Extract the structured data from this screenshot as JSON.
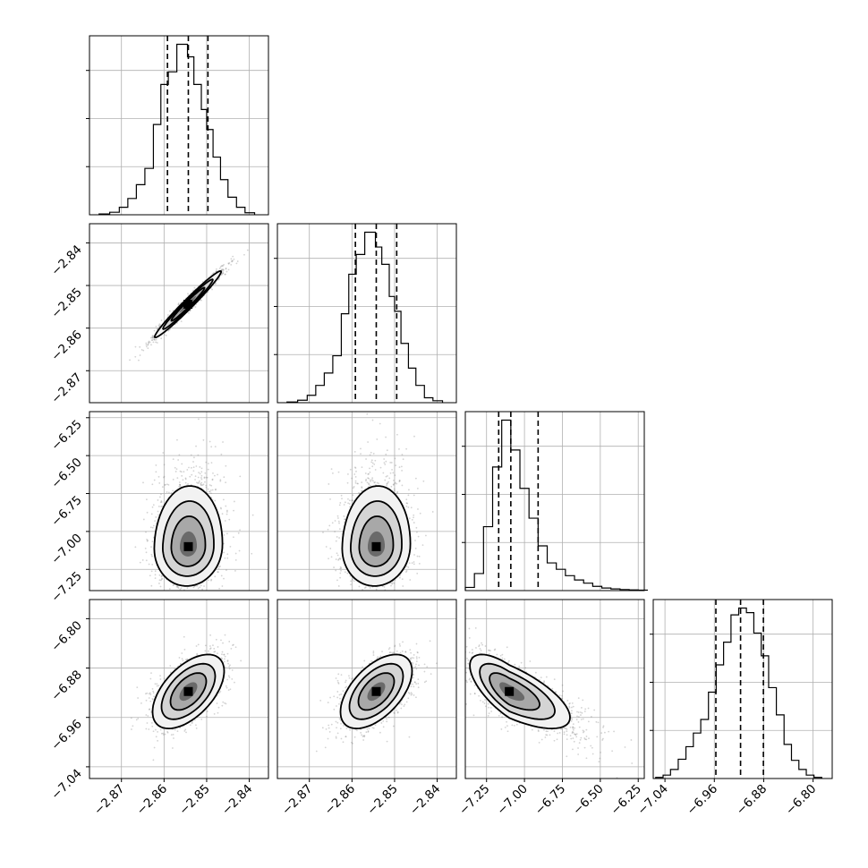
{
  "chart_data": {
    "type": "corner",
    "title": "",
    "grid": true,
    "n_params": 4,
    "params": [
      {
        "index": 0,
        "label": "",
        "range": [
          -2.8775,
          -2.8355
        ],
        "ticks": [
          -2.87,
          -2.86,
          -2.85,
          -2.84
        ],
        "tick_labels": [
          "−2.87",
          "−2.86",
          "−2.85",
          "−2.84"
        ],
        "quantiles": [
          -2.8592,
          -2.8543,
          -2.8497
        ],
        "hist_x": [
          -2.874,
          -2.8715,
          -2.8695,
          -2.8675,
          -2.8655,
          -2.8635,
          -2.8615,
          -2.86,
          -2.858,
          -2.856,
          -2.855,
          -2.854,
          -2.852,
          -2.8505,
          -2.8495,
          -2.8475,
          -2.846,
          -2.844,
          -2.842,
          -2.84
        ],
        "hist_y": [
          0.3,
          1.0,
          3.0,
          6.5,
          12.0,
          18.5,
          36.0,
          52.0,
          57.0,
          68.0,
          68.0,
          63.0,
          52.0,
          42.0,
          34.0,
          23.0,
          14.0,
          7.0,
          3.0,
          0.8
        ]
      },
      {
        "index": 1,
        "label": "",
        "range": [
          -2.8775,
          -2.8355
        ],
        "ticks": [
          -2.87,
          -2.86,
          -2.85,
          -2.84
        ],
        "tick_labels": [
          "−2.87",
          "−2.86",
          "−2.85",
          "−2.84"
        ],
        "quantiles": [
          -2.8592,
          -2.8543,
          -2.8495
        ],
        "hist_x": [
          -2.874,
          -2.8715,
          -2.8695,
          -2.8675,
          -2.8655,
          -2.8635,
          -2.8615,
          -2.86,
          -2.858,
          -2.856,
          -2.855,
          -2.854,
          -2.852,
          -2.8505,
          -2.8495,
          -2.8475,
          -2.846,
          -2.844,
          -2.842,
          -2.84
        ],
        "hist_y": [
          0.3,
          1.0,
          3.0,
          7.0,
          12.0,
          19.0,
          36.0,
          52.0,
          60.0,
          69.0,
          69.0,
          63.0,
          56.0,
          43.0,
          37.0,
          24.0,
          14.0,
          7.0,
          2.0,
          0.8
        ]
      },
      {
        "index": 2,
        "label": "",
        "range": [
          -7.39,
          -6.21
        ],
        "ticks": [
          -7.25,
          -7.0,
          -6.75,
          -6.5,
          -6.25
        ],
        "tick_labels": [
          "−7.25",
          "−7.00",
          "−6.75",
          "−6.50",
          "−6.25"
        ],
        "quantiles": [
          -7.17,
          -7.09,
          -6.91
        ],
        "hist_x": [
          -7.36,
          -7.3,
          -7.24,
          -7.18,
          -7.12,
          -7.06,
          -7.0,
          -6.94,
          -6.88,
          -6.82,
          -6.76,
          -6.7,
          -6.64,
          -6.58,
          -6.52,
          -6.46,
          -6.4,
          -6.34,
          -6.28,
          -6.22
        ],
        "hist_y": [
          1.5,
          8.0,
          30.0,
          58.0,
          80.0,
          66.0,
          48.0,
          34.0,
          21.0,
          13.0,
          10.0,
          7.0,
          5.0,
          3.5,
          2.0,
          1.2,
          0.8,
          0.5,
          0.3,
          0.2
        ]
      },
      {
        "index": 3,
        "label": "",
        "range": [
          -7.059,
          -6.769
        ],
        "ticks": [
          -7.04,
          -6.96,
          -6.88,
          -6.8
        ],
        "tick_labels": [
          "−7.04",
          "−6.96",
          "−6.88",
          "−6.80"
        ],
        "quantiles": [
          -6.9575,
          -6.9175,
          -6.8805
        ],
        "hist_x": [
          -7.049,
          -7.037,
          -7.025,
          -7.012,
          -7.0,
          -6.988,
          -6.976,
          -6.963,
          -6.951,
          -6.939,
          -6.927,
          -6.914,
          -6.902,
          -6.89,
          -6.878,
          -6.866,
          -6.853,
          -6.841,
          -6.829,
          -6.817,
          -6.805,
          -6.792
        ],
        "hist_y": [
          0.5,
          1.5,
          4.0,
          8.5,
          14.0,
          20.0,
          26.0,
          38.0,
          50.0,
          60.0,
          72.0,
          75.0,
          73.0,
          64.0,
          54.0,
          40.0,
          28.0,
          15.0,
          8.0,
          4.0,
          1.5,
          0.5
        ]
      }
    ],
    "pairs": [
      {
        "x": 0,
        "y": 1,
        "mean": [
          -2.8544,
          -2.8544
        ],
        "sd": [
          0.0039,
          0.0039
        ],
        "rho": 0.98,
        "skew": 0
      },
      {
        "x": 0,
        "y": 2,
        "mean": [
          -2.8543,
          -7.1
        ],
        "sd": [
          0.004,
          0.13
        ],
        "rho": 0.05,
        "skew": 0.6
      },
      {
        "x": 1,
        "y": 2,
        "mean": [
          -2.8543,
          -7.1
        ],
        "sd": [
          0.004,
          0.13
        ],
        "rho": 0.05,
        "skew": 0.6
      },
      {
        "x": 0,
        "y": 3,
        "mean": [
          -2.8543,
          -6.918
        ],
        "sd": [
          0.0042,
          0.03
        ],
        "rho": 0.55,
        "skew": 0
      },
      {
        "x": 1,
        "y": 3,
        "mean": [
          -2.8543,
          -6.918
        ],
        "sd": [
          0.0042,
          0.03
        ],
        "rho": 0.55,
        "skew": 0
      },
      {
        "x": 2,
        "y": 3,
        "mean": [
          -7.1,
          -6.918
        ],
        "sd": [
          0.13,
          0.03
        ],
        "rho": -0.7,
        "skew": 0.6
      }
    ]
  }
}
